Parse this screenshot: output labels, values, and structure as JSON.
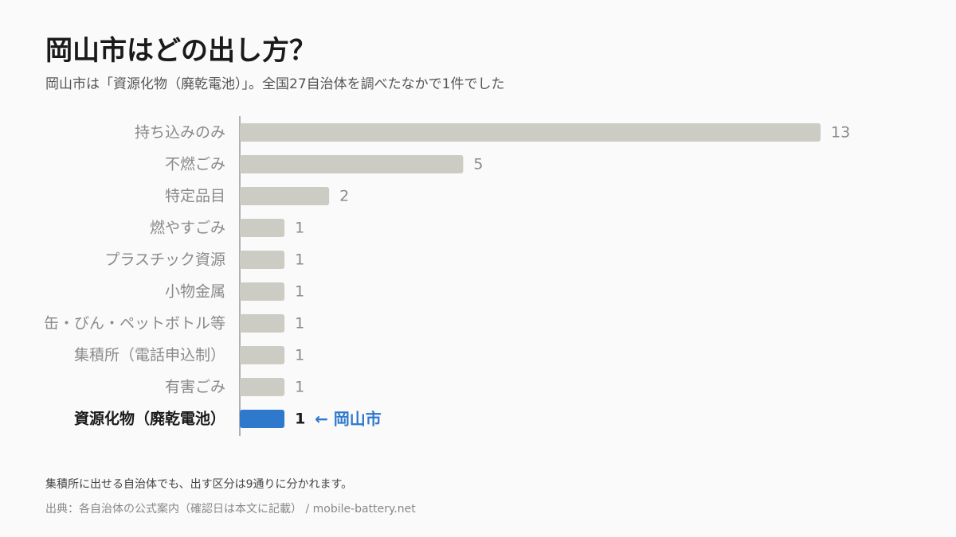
{
  "header": {
    "title": "岡山市はどの出し方？",
    "subtitle": "岡山市は「資源化物（廃乾電池）」。全国27自治体を調べたなかで1件でした"
  },
  "colors": {
    "bar_default": "#cccbc4",
    "bar_highlight": "#2f79cc",
    "axis": "#b0b0b0"
  },
  "chart_data": {
    "type": "bar",
    "orientation": "horizontal",
    "categories": [
      "持ち込みのみ",
      "不燃ごみ",
      "特定品目",
      "燃やすごみ",
      "プラスチック資源",
      "小物金属",
      "缶・びん・ペットボトル等",
      "集積所（電話申込制）",
      "有害ごみ",
      "資源化物（廃乾電池）"
    ],
    "values": [
      13,
      5,
      2,
      1,
      1,
      1,
      1,
      1,
      1,
      1
    ],
    "highlight_index": 9,
    "annotation": "← 岡山市",
    "xlim": [
      0,
      13
    ],
    "grid": false,
    "legend": "none"
  },
  "footer": {
    "note": "集積所に出せる自治体でも、出す区分は9通りに分かれます。",
    "source": "出典：各自治体の公式案内（確認日は本文に記載） / mobile-battery.net"
  }
}
